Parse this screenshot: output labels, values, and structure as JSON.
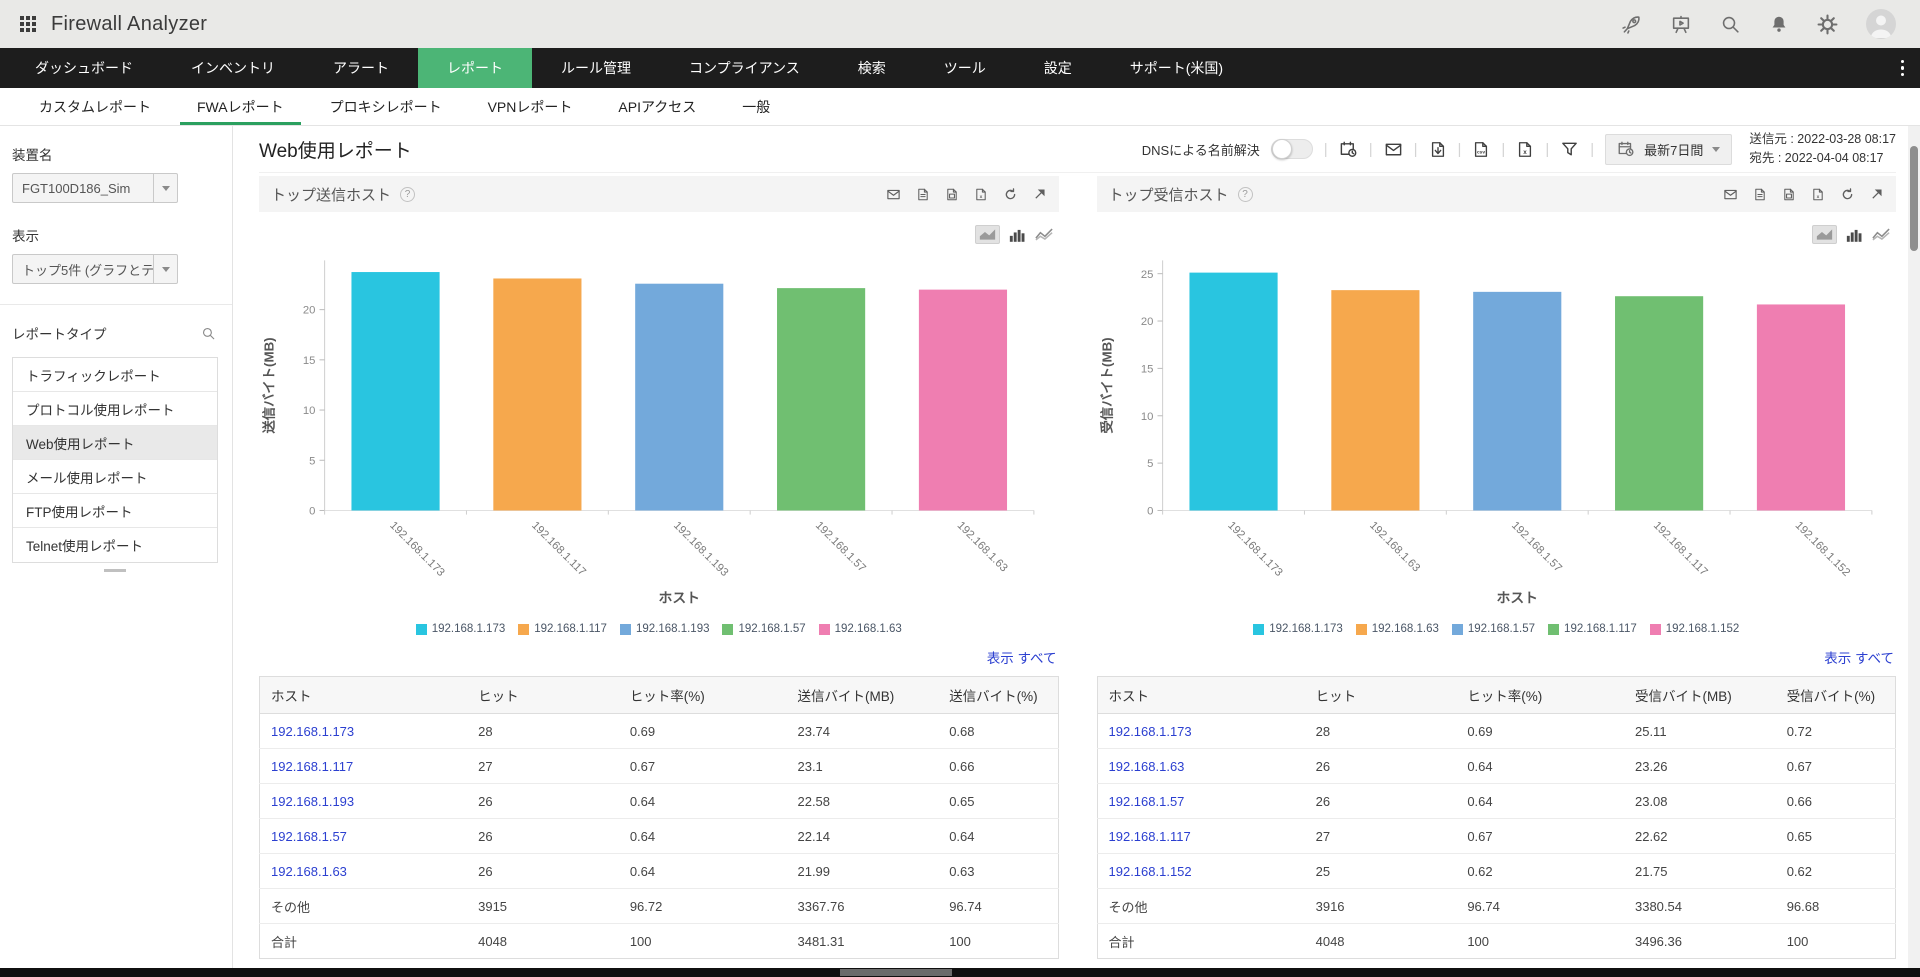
{
  "app": {
    "title": "Firewall Analyzer"
  },
  "colors": {
    "accent_green": "#4cb576",
    "tab_underline_green": "#2ba05f",
    "link_blue": "#2b3fd0",
    "nav_dark": "#1d1d1d"
  },
  "topbar": {
    "icons": [
      "rocket-icon",
      "demo-player-icon",
      "search-icon",
      "notifications-bell-icon",
      "settings-gear-icon",
      "user-avatar"
    ]
  },
  "nav": {
    "items": [
      {
        "id": "dashboard",
        "label": "ダッシュボード",
        "active": false
      },
      {
        "id": "inventory",
        "label": "インベントリ",
        "active": false
      },
      {
        "id": "alerts",
        "label": "アラート",
        "active": false
      },
      {
        "id": "reports",
        "label": "レポート",
        "active": true
      },
      {
        "id": "rule-management",
        "label": "ルール管理",
        "active": false
      },
      {
        "id": "compliance",
        "label": "コンプライアンス",
        "active": false
      },
      {
        "id": "search",
        "label": "検索",
        "active": false
      },
      {
        "id": "tools",
        "label": "ツール",
        "active": false
      },
      {
        "id": "settings",
        "label": "設定",
        "active": false
      },
      {
        "id": "support",
        "label": "サポート(米国)",
        "active": false
      }
    ]
  },
  "subnav": {
    "items": [
      {
        "id": "custom-reports",
        "label": "カスタムレポート",
        "active": false
      },
      {
        "id": "fwa-reports",
        "label": "FWAレポート",
        "active": true
      },
      {
        "id": "proxy-reports",
        "label": "プロキシレポート",
        "active": false
      },
      {
        "id": "vpn-reports",
        "label": "VPNレポート",
        "active": false
      },
      {
        "id": "api-access",
        "label": "APIアクセス",
        "active": false
      },
      {
        "id": "general",
        "label": "一般",
        "active": false
      }
    ]
  },
  "sidebar": {
    "device_label": "装置名",
    "device_value": "FGT100D186_Sim",
    "display_label": "表示",
    "display_value": "トップ5件 (グラフとテ...",
    "report_type_label": "レポートタイプ",
    "report_types": [
      {
        "id": "traffic",
        "label": "トラフィックレポート",
        "active": false
      },
      {
        "id": "protocol-usage",
        "label": "プロトコル使用レポート",
        "active": false
      },
      {
        "id": "web-usage",
        "label": "Web使用レポート",
        "active": true
      },
      {
        "id": "mail-usage",
        "label": "メール使用レポート",
        "active": false
      },
      {
        "id": "ftp-usage",
        "label": "FTP使用レポート",
        "active": false
      },
      {
        "id": "telnet-usage",
        "label": "Telnet使用レポート",
        "active": false
      }
    ]
  },
  "toolbar": {
    "page_title": "Web使用レポート",
    "dns_label": "DNSによる名前解決",
    "dns_enabled": false,
    "icons": [
      "schedule-calendar-icon",
      "email-icon",
      "pdf-export-icon",
      "csv-export-icon",
      "excel-export-icon",
      "filter-icon"
    ],
    "date_range_label": "最新7日間",
    "from_label": "送信元 :",
    "from_value": "2022-03-28 08:17",
    "to_label": "宛先    :",
    "to_value": "2022-04-04 08:17"
  },
  "panels": [
    {
      "title": "トップ送信ホスト",
      "help": "?",
      "icons": [
        "email-icon",
        "pdf-export-icon",
        "csv-export-icon",
        "excel-export-icon",
        "refresh-icon",
        "expand-icon"
      ],
      "chart_type_icons": [
        "area-chart-icon",
        "bar-chart-icon",
        "line-chart-icon"
      ],
      "show_all": "表示 すべて",
      "table": {
        "headers": [
          "ホスト",
          "ヒット",
          "ヒット率(%)",
          "送信バイト(MB)",
          "送信バイト(%)"
        ],
        "rows": [
          {
            "host": "192.168.1.173",
            "link": true,
            "cells": [
              "28",
              "0.69",
              "23.74",
              "0.68"
            ]
          },
          {
            "host": "192.168.1.117",
            "link": true,
            "cells": [
              "27",
              "0.67",
              "23.1",
              "0.66"
            ]
          },
          {
            "host": "192.168.1.193",
            "link": true,
            "cells": [
              "26",
              "0.64",
              "22.58",
              "0.65"
            ]
          },
          {
            "host": "192.168.1.57",
            "link": true,
            "cells": [
              "26",
              "0.64",
              "22.14",
              "0.64"
            ]
          },
          {
            "host": "192.168.1.63",
            "link": true,
            "cells": [
              "26",
              "0.64",
              "21.99",
              "0.63"
            ]
          },
          {
            "host": "その他",
            "link": false,
            "cells": [
              "3915",
              "96.72",
              "3367.76",
              "96.74"
            ]
          },
          {
            "host": "合計",
            "link": false,
            "cells": [
              "4048",
              "100",
              "3481.31",
              "100"
            ]
          }
        ]
      }
    },
    {
      "title": "トップ受信ホスト",
      "help": "?",
      "icons": [
        "email-icon",
        "pdf-export-icon",
        "csv-export-icon",
        "excel-export-icon",
        "refresh-icon",
        "expand-icon"
      ],
      "chart_type_icons": [
        "area-chart-icon",
        "bar-chart-icon",
        "line-chart-icon"
      ],
      "show_all": "表示 すべて",
      "table": {
        "headers": [
          "ホスト",
          "ヒット",
          "ヒット率(%)",
          "受信バイト(MB)",
          "受信バイト(%)"
        ],
        "rows": [
          {
            "host": "192.168.1.173",
            "link": true,
            "cells": [
              "28",
              "0.69",
              "25.11",
              "0.72"
            ]
          },
          {
            "host": "192.168.1.63",
            "link": true,
            "cells": [
              "26",
              "0.64",
              "23.26",
              "0.67"
            ]
          },
          {
            "host": "192.168.1.57",
            "link": true,
            "cells": [
              "26",
              "0.64",
              "23.08",
              "0.66"
            ]
          },
          {
            "host": "192.168.1.117",
            "link": true,
            "cells": [
              "27",
              "0.67",
              "22.62",
              "0.65"
            ]
          },
          {
            "host": "192.168.1.152",
            "link": true,
            "cells": [
              "25",
              "0.62",
              "21.75",
              "0.62"
            ]
          },
          {
            "host": "その他",
            "link": false,
            "cells": [
              "3916",
              "96.74",
              "3380.54",
              "96.68"
            ]
          },
          {
            "host": "合計",
            "link": false,
            "cells": [
              "4048",
              "100",
              "3496.36",
              "100"
            ]
          }
        ]
      }
    }
  ],
  "chart_data": [
    {
      "type": "bar",
      "title": "トップ送信ホスト",
      "categories": [
        "192.168.1.173",
        "192.168.1.117",
        "192.168.1.193",
        "192.168.1.57",
        "192.168.1.63"
      ],
      "values": [
        23.74,
        23.1,
        22.58,
        22.14,
        21.99
      ],
      "xlabel": "ホスト",
      "ylabel": "送信バイト(MB)",
      "ylim": [
        0,
        24.9
      ],
      "yticks": [
        0,
        5,
        10,
        15,
        20
      ],
      "grid": false,
      "legend_position": "bottom",
      "colors": [
        "#29c5e0",
        "#f6a84d",
        "#73a9db",
        "#70bf71",
        "#ef7eb1"
      ]
    },
    {
      "type": "bar",
      "title": "トップ受信ホスト",
      "categories": [
        "192.168.1.173",
        "192.168.1.63",
        "192.168.1.57",
        "192.168.1.117",
        "192.168.1.152"
      ],
      "values": [
        25.11,
        23.26,
        23.08,
        22.62,
        21.75
      ],
      "xlabel": "ホスト",
      "ylabel": "受信バイト(MB)",
      "ylim": [
        0,
        26.4
      ],
      "yticks": [
        0,
        5,
        10,
        15,
        20,
        25
      ],
      "grid": false,
      "legend_position": "bottom",
      "colors": [
        "#29c5e0",
        "#f6a84d",
        "#73a9db",
        "#70bf71",
        "#ef7eb1"
      ]
    }
  ]
}
